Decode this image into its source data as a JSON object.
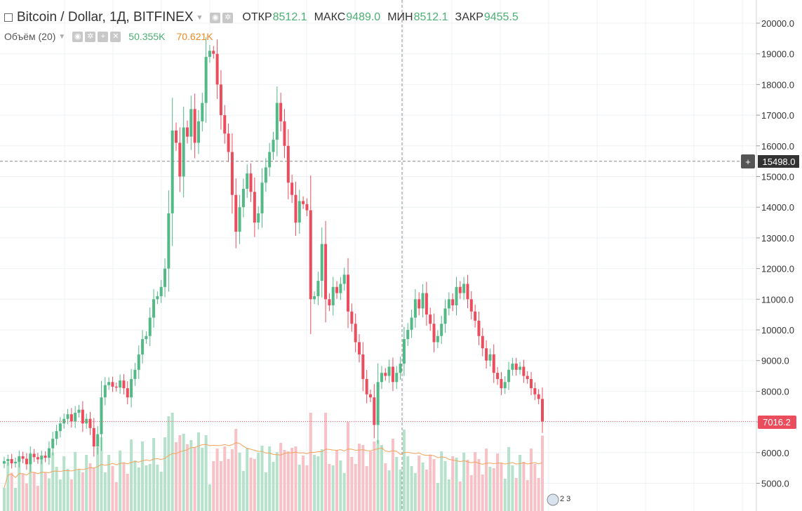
{
  "header": {
    "symbol": "Bitcoin / Dollar, 1Д, BITFINEX",
    "ohlc": [
      {
        "label": "ОТКР",
        "value": "8512.1"
      },
      {
        "label": "МАКС",
        "value": "9489.0"
      },
      {
        "label": "МИН",
        "value": "8512.1"
      },
      {
        "label": "ЗАКР",
        "value": "9455.5"
      }
    ]
  },
  "volume_legend": {
    "label": "Объём (20)",
    "value": "50.355K",
    "ma_value": "70.621K"
  },
  "colors": {
    "up": "#53b987",
    "down": "#eb4d5c",
    "vol_up": "#b6e2cc",
    "vol_down": "#f8c1c6",
    "ma": "#f5a35a",
    "grid": "#eef2f5",
    "price_line": "#eb4d5c",
    "crosshair": "#888888"
  },
  "crosshair_price_label": "15498.0",
  "last_price_label": "7016.2",
  "badge_text": "2 3",
  "chart_data": {
    "type": "candlestick",
    "ylim": [
      4500,
      20400
    ],
    "y_ticks": [
      "5000.0",
      "6000.0",
      "7000.0",
      "8000.0",
      "9000.0",
      "10000.0",
      "11000.0",
      "12000.0",
      "13000.0",
      "14000.0",
      "15000.0",
      "16000.0",
      "17000.0",
      "18000.0",
      "19000.0",
      "20000.0"
    ],
    "closes": [
      5720,
      5790,
      5650,
      5700,
      5880,
      5800,
      5620,
      5960,
      5850,
      5780,
      5900,
      5830,
      6140,
      6450,
      6700,
      6950,
      7100,
      7250,
      7020,
      7300,
      7400,
      6950,
      7100,
      6800,
      6200,
      6600,
      7800,
      8200,
      8300,
      8150,
      8120,
      8350,
      8100,
      7800,
      8400,
      8700,
      9200,
      9700,
      9800,
      10400,
      11000,
      11100,
      11400,
      12000,
      13800,
      16500,
      16100,
      15000,
      16600,
      16300,
      17200,
      16100,
      16800,
      17400,
      18900,
      19100,
      19000,
      18000,
      17000,
      16400,
      15800,
      14400,
      13200,
      14000,
      14600,
      15100,
      14500,
      13500,
      13800,
      14800,
      15300,
      15800,
      16200,
      17400,
      16800,
      16000,
      14800,
      14400,
      13500,
      14200,
      14100,
      13900,
      11000,
      11100,
      11600,
      12800,
      11000,
      10800,
      11400,
      11200,
      11500,
      11800,
      10600,
      10200,
      9600,
      9200,
      8400,
      7900,
      7800,
      6900,
      8300,
      8600,
      8500,
      8800,
      8300,
      8600,
      8900,
      9700,
      10000,
      10400,
      11000,
      10700,
      11200,
      10500,
      10200,
      9600,
      9800,
      10200,
      10700,
      11000,
      10800,
      11400,
      11200,
      11500,
      11000,
      10600,
      10300,
      9800,
      9400,
      9000,
      9200,
      8600,
      8400,
      8100,
      8300,
      8700,
      8900,
      8700,
      8800,
      8500,
      8400,
      8100,
      7900,
      7750,
      7016
    ]
  }
}
